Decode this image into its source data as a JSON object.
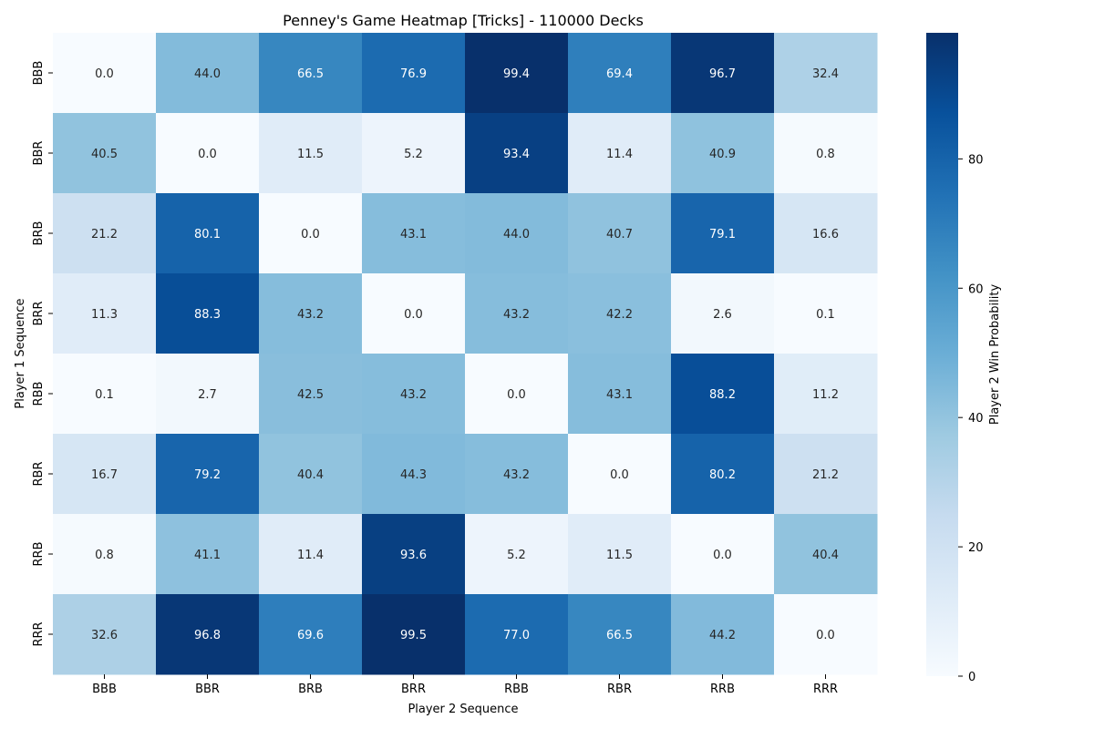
{
  "chart_data": {
    "type": "heatmap",
    "title": "Penney's Game Heatmap [Tricks] - 110000 Decks",
    "xlabel": "Player 2 Sequence",
    "ylabel": "Player 1 Sequence",
    "x_categories": [
      "BBB",
      "BBR",
      "BRB",
      "BRR",
      "RBB",
      "RBR",
      "RRB",
      "RRR"
    ],
    "y_categories": [
      "BBB",
      "BBR",
      "BRB",
      "BRR",
      "RBB",
      "RBR",
      "RRB",
      "RRR"
    ],
    "values": [
      [
        0.0,
        44.0,
        66.5,
        76.9,
        99.4,
        69.4,
        96.7,
        32.4
      ],
      [
        40.5,
        0.0,
        11.5,
        5.2,
        93.4,
        11.4,
        40.9,
        0.8
      ],
      [
        21.2,
        80.1,
        0.0,
        43.1,
        44.0,
        40.7,
        79.1,
        16.6
      ],
      [
        11.3,
        88.3,
        43.2,
        0.0,
        43.2,
        42.2,
        2.6,
        0.1
      ],
      [
        0.1,
        2.7,
        42.5,
        43.2,
        0.0,
        43.1,
        88.2,
        11.2
      ],
      [
        16.7,
        79.2,
        40.4,
        44.3,
        43.2,
        0.0,
        80.2,
        21.2
      ],
      [
        0.8,
        41.1,
        11.4,
        93.6,
        5.2,
        11.5,
        0.0,
        40.4
      ],
      [
        32.6,
        96.8,
        69.6,
        99.5,
        77.0,
        66.5,
        44.2,
        0.0
      ]
    ],
    "colorbar": {
      "label": "Player 2 Win Probability",
      "ticks": [
        0,
        20,
        40,
        60,
        80
      ],
      "range": [
        0,
        99.5
      ],
      "colormap": "Blues"
    },
    "grid": false
  }
}
